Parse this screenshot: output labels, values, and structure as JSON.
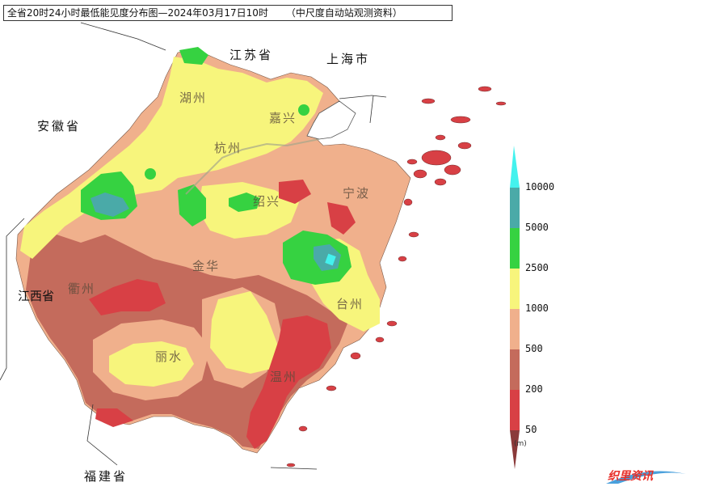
{
  "title": {
    "main": "全省20时24小时最低能见度分布图—2024年03月17日10时",
    "source": "（中尺度自动站观测资料）"
  },
  "provinces": {
    "jiangsu": "江苏省",
    "shanghai": "上海市",
    "anhui": "安徽省",
    "jiangxi": "江西省",
    "fujian": "福建省"
  },
  "cities": {
    "huzhou": "湖州",
    "jiaxing": "嘉兴",
    "hangzhou": "杭州",
    "shaoxing": "绍兴",
    "ningbo": "宁波",
    "jinhua": "金华",
    "quzhou": "衢州",
    "taizhou": "台州",
    "lishui": "丽水",
    "wenzhou": "温州"
  },
  "legend": {
    "unit": "(m)",
    "items": [
      {
        "value": "10000",
        "color": "#43f2ee"
      },
      {
        "value": "5000",
        "color": "#4aaaa8"
      },
      {
        "value": "2500",
        "color": "#36d241"
      },
      {
        "value": "1000",
        "color": "#f7f57c"
      },
      {
        "value": "500",
        "color": "#f0b08c"
      },
      {
        "value": "200",
        "color": "#c46b5c"
      },
      {
        "value": "50",
        "color": "#d84045"
      },
      {
        "value": "",
        "color": "#8a3a3a"
      }
    ]
  },
  "logo": "织里资讯"
}
